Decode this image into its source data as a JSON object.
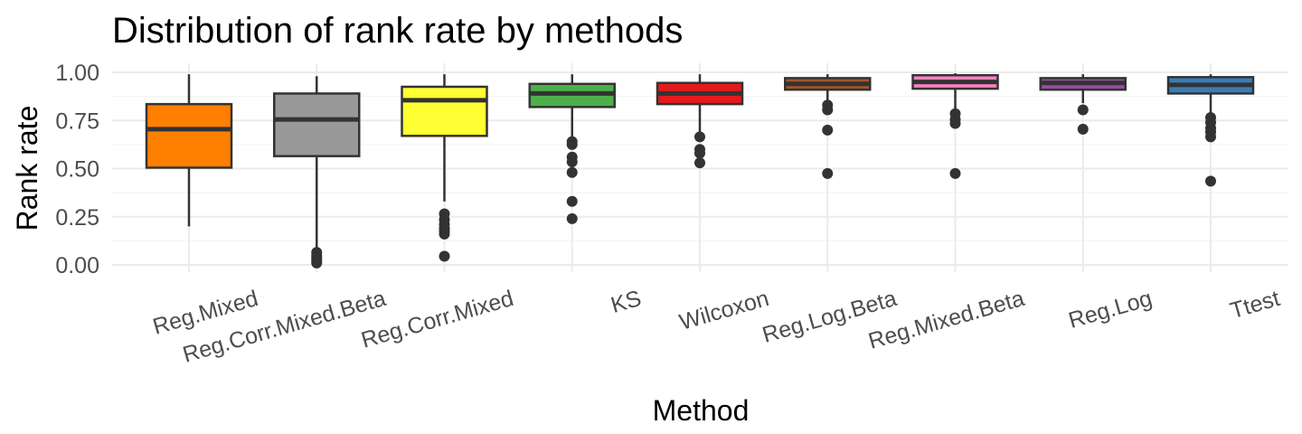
{
  "chart_data": {
    "type": "boxplot",
    "title": "Distribution of rank rate by methods",
    "xlabel": "Method",
    "ylabel": "Rank rate",
    "ylim": [
      0,
      1.05
    ],
    "yticks": [
      0.0,
      0.25,
      0.5,
      0.75,
      1.0
    ],
    "ytick_labels": [
      "0.00",
      "0.25",
      "0.50",
      "0.75",
      "1.00"
    ],
    "grid": true,
    "legend": "none",
    "categories": [
      "Reg.Mixed",
      "Reg.Corr.Mixed.Beta",
      "Reg.Corr.Mixed",
      "KS",
      "Wilcoxon",
      "Reg.Log.Beta",
      "Reg.Mixed.Beta",
      "Reg.Log",
      "Ttest"
    ],
    "boxes": [
      {
        "category": "Reg.Mixed",
        "color": "#FF7F00",
        "whisker_low": 0.2,
        "q1": 0.505,
        "median": 0.705,
        "q3": 0.835,
        "whisker_high": 0.99,
        "outliers": []
      },
      {
        "category": "Reg.Corr.Mixed.Beta",
        "color": "#999999",
        "whisker_low": 0.07,
        "q1": 0.565,
        "median": 0.755,
        "q3": 0.89,
        "whisker_high": 0.98,
        "outliers": [
          0.065,
          0.05,
          0.04,
          0.03,
          0.02,
          0.01
        ]
      },
      {
        "category": "Reg.Corr.Mixed",
        "color": "#FFFF33",
        "whisker_low": 0.33,
        "q1": 0.67,
        "median": 0.855,
        "q3": 0.925,
        "whisker_high": 0.99,
        "outliers": [
          0.265,
          0.235,
          0.21,
          0.19,
          0.175,
          0.16,
          0.045
        ]
      },
      {
        "category": "KS",
        "color": "#4DAF4A",
        "whisker_low": 0.655,
        "q1": 0.82,
        "median": 0.89,
        "q3": 0.94,
        "whisker_high": 0.99,
        "outliers": [
          0.64,
          0.625,
          0.56,
          0.535,
          0.48,
          0.33,
          0.24
        ]
      },
      {
        "category": "Wilcoxon",
        "color": "#E41A1C",
        "whisker_low": 0.68,
        "q1": 0.835,
        "median": 0.89,
        "q3": 0.945,
        "whisker_high": 0.99,
        "outliers": [
          0.665,
          0.6,
          0.58,
          0.53
        ]
      },
      {
        "category": "Reg.Log.Beta",
        "color": "#A65628",
        "whisker_low": 0.845,
        "q1": 0.91,
        "median": 0.94,
        "q3": 0.97,
        "whisker_high": 0.99,
        "outliers": [
          0.83,
          0.805,
          0.7,
          0.475
        ]
      },
      {
        "category": "Reg.Mixed.Beta",
        "color": "#F781BF",
        "whisker_low": 0.8,
        "q1": 0.915,
        "median": 0.95,
        "q3": 0.985,
        "whisker_high": 0.995,
        "outliers": [
          0.785,
          0.755,
          0.735,
          0.475
        ]
      },
      {
        "category": "Reg.Log",
        "color": "#984EA3",
        "whisker_low": 0.84,
        "q1": 0.91,
        "median": 0.945,
        "q3": 0.97,
        "whisker_high": 0.99,
        "outliers": [
          0.805,
          0.705
        ]
      },
      {
        "category": "Ttest",
        "color": "#377EB8",
        "whisker_low": 0.79,
        "q1": 0.89,
        "median": 0.935,
        "q3": 0.975,
        "whisker_high": 0.99,
        "outliers": [
          0.765,
          0.74,
          0.71,
          0.69,
          0.665,
          0.435
        ]
      }
    ]
  }
}
